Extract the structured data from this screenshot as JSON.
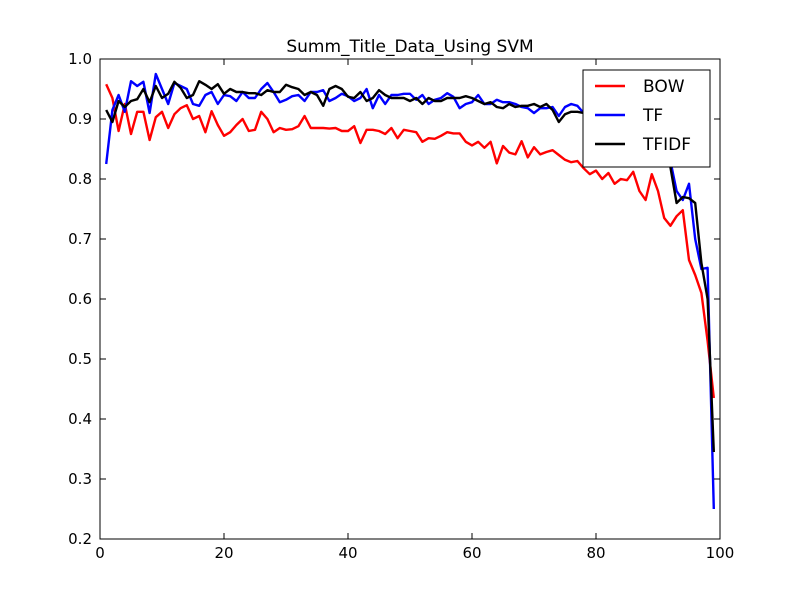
{
  "chart_data": {
    "type": "line",
    "title": "Summ_Title_Data_Using SVM",
    "xlabel": "",
    "ylabel": "",
    "xlim": [
      0,
      100
    ],
    "ylim": [
      0.2,
      1.0
    ],
    "xticks": [
      "0",
      "20",
      "40",
      "60",
      "80",
      "100"
    ],
    "yticks": [
      "0.2",
      "0.3",
      "0.4",
      "0.5",
      "0.6",
      "0.7",
      "0.8",
      "0.9",
      "1.0"
    ],
    "grid": false,
    "legend_position": "top-right",
    "x": [
      1,
      2,
      3,
      4,
      5,
      6,
      7,
      8,
      9,
      10,
      11,
      12,
      13,
      14,
      15,
      16,
      17,
      18,
      19,
      20,
      21,
      22,
      23,
      24,
      25,
      26,
      27,
      28,
      29,
      30,
      31,
      32,
      33,
      34,
      35,
      36,
      37,
      38,
      39,
      40,
      41,
      42,
      43,
      44,
      45,
      46,
      47,
      48,
      49,
      50,
      51,
      52,
      53,
      54,
      55,
      56,
      57,
      58,
      59,
      60,
      61,
      62,
      63,
      64,
      65,
      66,
      67,
      68,
      69,
      70,
      71,
      72,
      73,
      74,
      75,
      76,
      77,
      78,
      79,
      80,
      81,
      82,
      83,
      84,
      85,
      86,
      87,
      88,
      89,
      90,
      91,
      92,
      93,
      94,
      95,
      96,
      97,
      98,
      99
    ],
    "series": [
      {
        "name": "BOW",
        "color": "#ff0000",
        "values": [
          0.958,
          0.935,
          0.88,
          0.925,
          0.875,
          0.912,
          0.912,
          0.865,
          0.903,
          0.912,
          0.885,
          0.908,
          0.918,
          0.923,
          0.9,
          0.905,
          0.878,
          0.913,
          0.89,
          0.872,
          0.878,
          0.89,
          0.9,
          0.88,
          0.882,
          0.912,
          0.9,
          0.878,
          0.885,
          0.882,
          0.883,
          0.888,
          0.905,
          0.885,
          0.885,
          0.885,
          0.884,
          0.885,
          0.88,
          0.88,
          0.888,
          0.86,
          0.882,
          0.882,
          0.88,
          0.875,
          0.885,
          0.868,
          0.882,
          0.88,
          0.878,
          0.862,
          0.868,
          0.867,
          0.872,
          0.878,
          0.876,
          0.876,
          0.862,
          0.856,
          0.862,
          0.852,
          0.862,
          0.826,
          0.855,
          0.844,
          0.841,
          0.863,
          0.836,
          0.853,
          0.841,
          0.845,
          0.848,
          0.84,
          0.832,
          0.828,
          0.83,
          0.818,
          0.808,
          0.814,
          0.8,
          0.81,
          0.792,
          0.8,
          0.798,
          0.812,
          0.78,
          0.765,
          0.808,
          0.78,
          0.735,
          0.722,
          0.738,
          0.748,
          0.665,
          0.64,
          0.61,
          0.53,
          0.435
        ]
      },
      {
        "name": "TF",
        "color": "#0000ff",
        "values": [
          0.825,
          0.915,
          0.94,
          0.912,
          0.963,
          0.955,
          0.962,
          0.91,
          0.975,
          0.95,
          0.925,
          0.96,
          0.955,
          0.95,
          0.925,
          0.922,
          0.94,
          0.945,
          0.925,
          0.94,
          0.938,
          0.93,
          0.945,
          0.935,
          0.935,
          0.95,
          0.96,
          0.945,
          0.928,
          0.932,
          0.938,
          0.94,
          0.93,
          0.945,
          0.945,
          0.948,
          0.93,
          0.935,
          0.942,
          0.938,
          0.93,
          0.935,
          0.95,
          0.918,
          0.94,
          0.925,
          0.94,
          0.94,
          0.942,
          0.942,
          0.932,
          0.94,
          0.925,
          0.932,
          0.935,
          0.943,
          0.937,
          0.918,
          0.925,
          0.928,
          0.94,
          0.925,
          0.925,
          0.932,
          0.928,
          0.928,
          0.925,
          0.92,
          0.918,
          0.91,
          0.918,
          0.918,
          0.92,
          0.905,
          0.92,
          0.925,
          0.922,
          0.91,
          0.915,
          0.912,
          0.915,
          0.912,
          0.91,
          0.91,
          0.91,
          0.91,
          0.905,
          0.905,
          0.9,
          0.88,
          0.862,
          0.83,
          0.78,
          0.765,
          0.792,
          0.7,
          0.65,
          0.652,
          0.25
        ]
      },
      {
        "name": "TFIDF",
        "color": "#000000",
        "values": [
          0.915,
          0.895,
          0.93,
          0.92,
          0.93,
          0.933,
          0.95,
          0.928,
          0.955,
          0.935,
          0.942,
          0.962,
          0.952,
          0.935,
          0.94,
          0.963,
          0.957,
          0.95,
          0.958,
          0.942,
          0.95,
          0.945,
          0.945,
          0.943,
          0.943,
          0.94,
          0.948,
          0.945,
          0.945,
          0.957,
          0.953,
          0.95,
          0.94,
          0.945,
          0.94,
          0.922,
          0.95,
          0.955,
          0.95,
          0.937,
          0.935,
          0.945,
          0.93,
          0.935,
          0.948,
          0.94,
          0.935,
          0.935,
          0.935,
          0.93,
          0.935,
          0.925,
          0.935,
          0.93,
          0.93,
          0.935,
          0.935,
          0.935,
          0.938,
          0.935,
          0.93,
          0.925,
          0.928,
          0.92,
          0.918,
          0.925,
          0.92,
          0.922,
          0.922,
          0.925,
          0.92,
          0.925,
          0.915,
          0.895,
          0.908,
          0.912,
          0.912,
          0.91,
          0.905,
          0.905,
          0.91,
          0.9,
          0.905,
          0.9,
          0.9,
          0.905,
          0.9,
          0.898,
          0.895,
          0.88,
          0.86,
          0.82,
          0.76,
          0.77,
          0.768,
          0.76,
          0.66,
          0.6,
          0.345
        ]
      }
    ]
  }
}
